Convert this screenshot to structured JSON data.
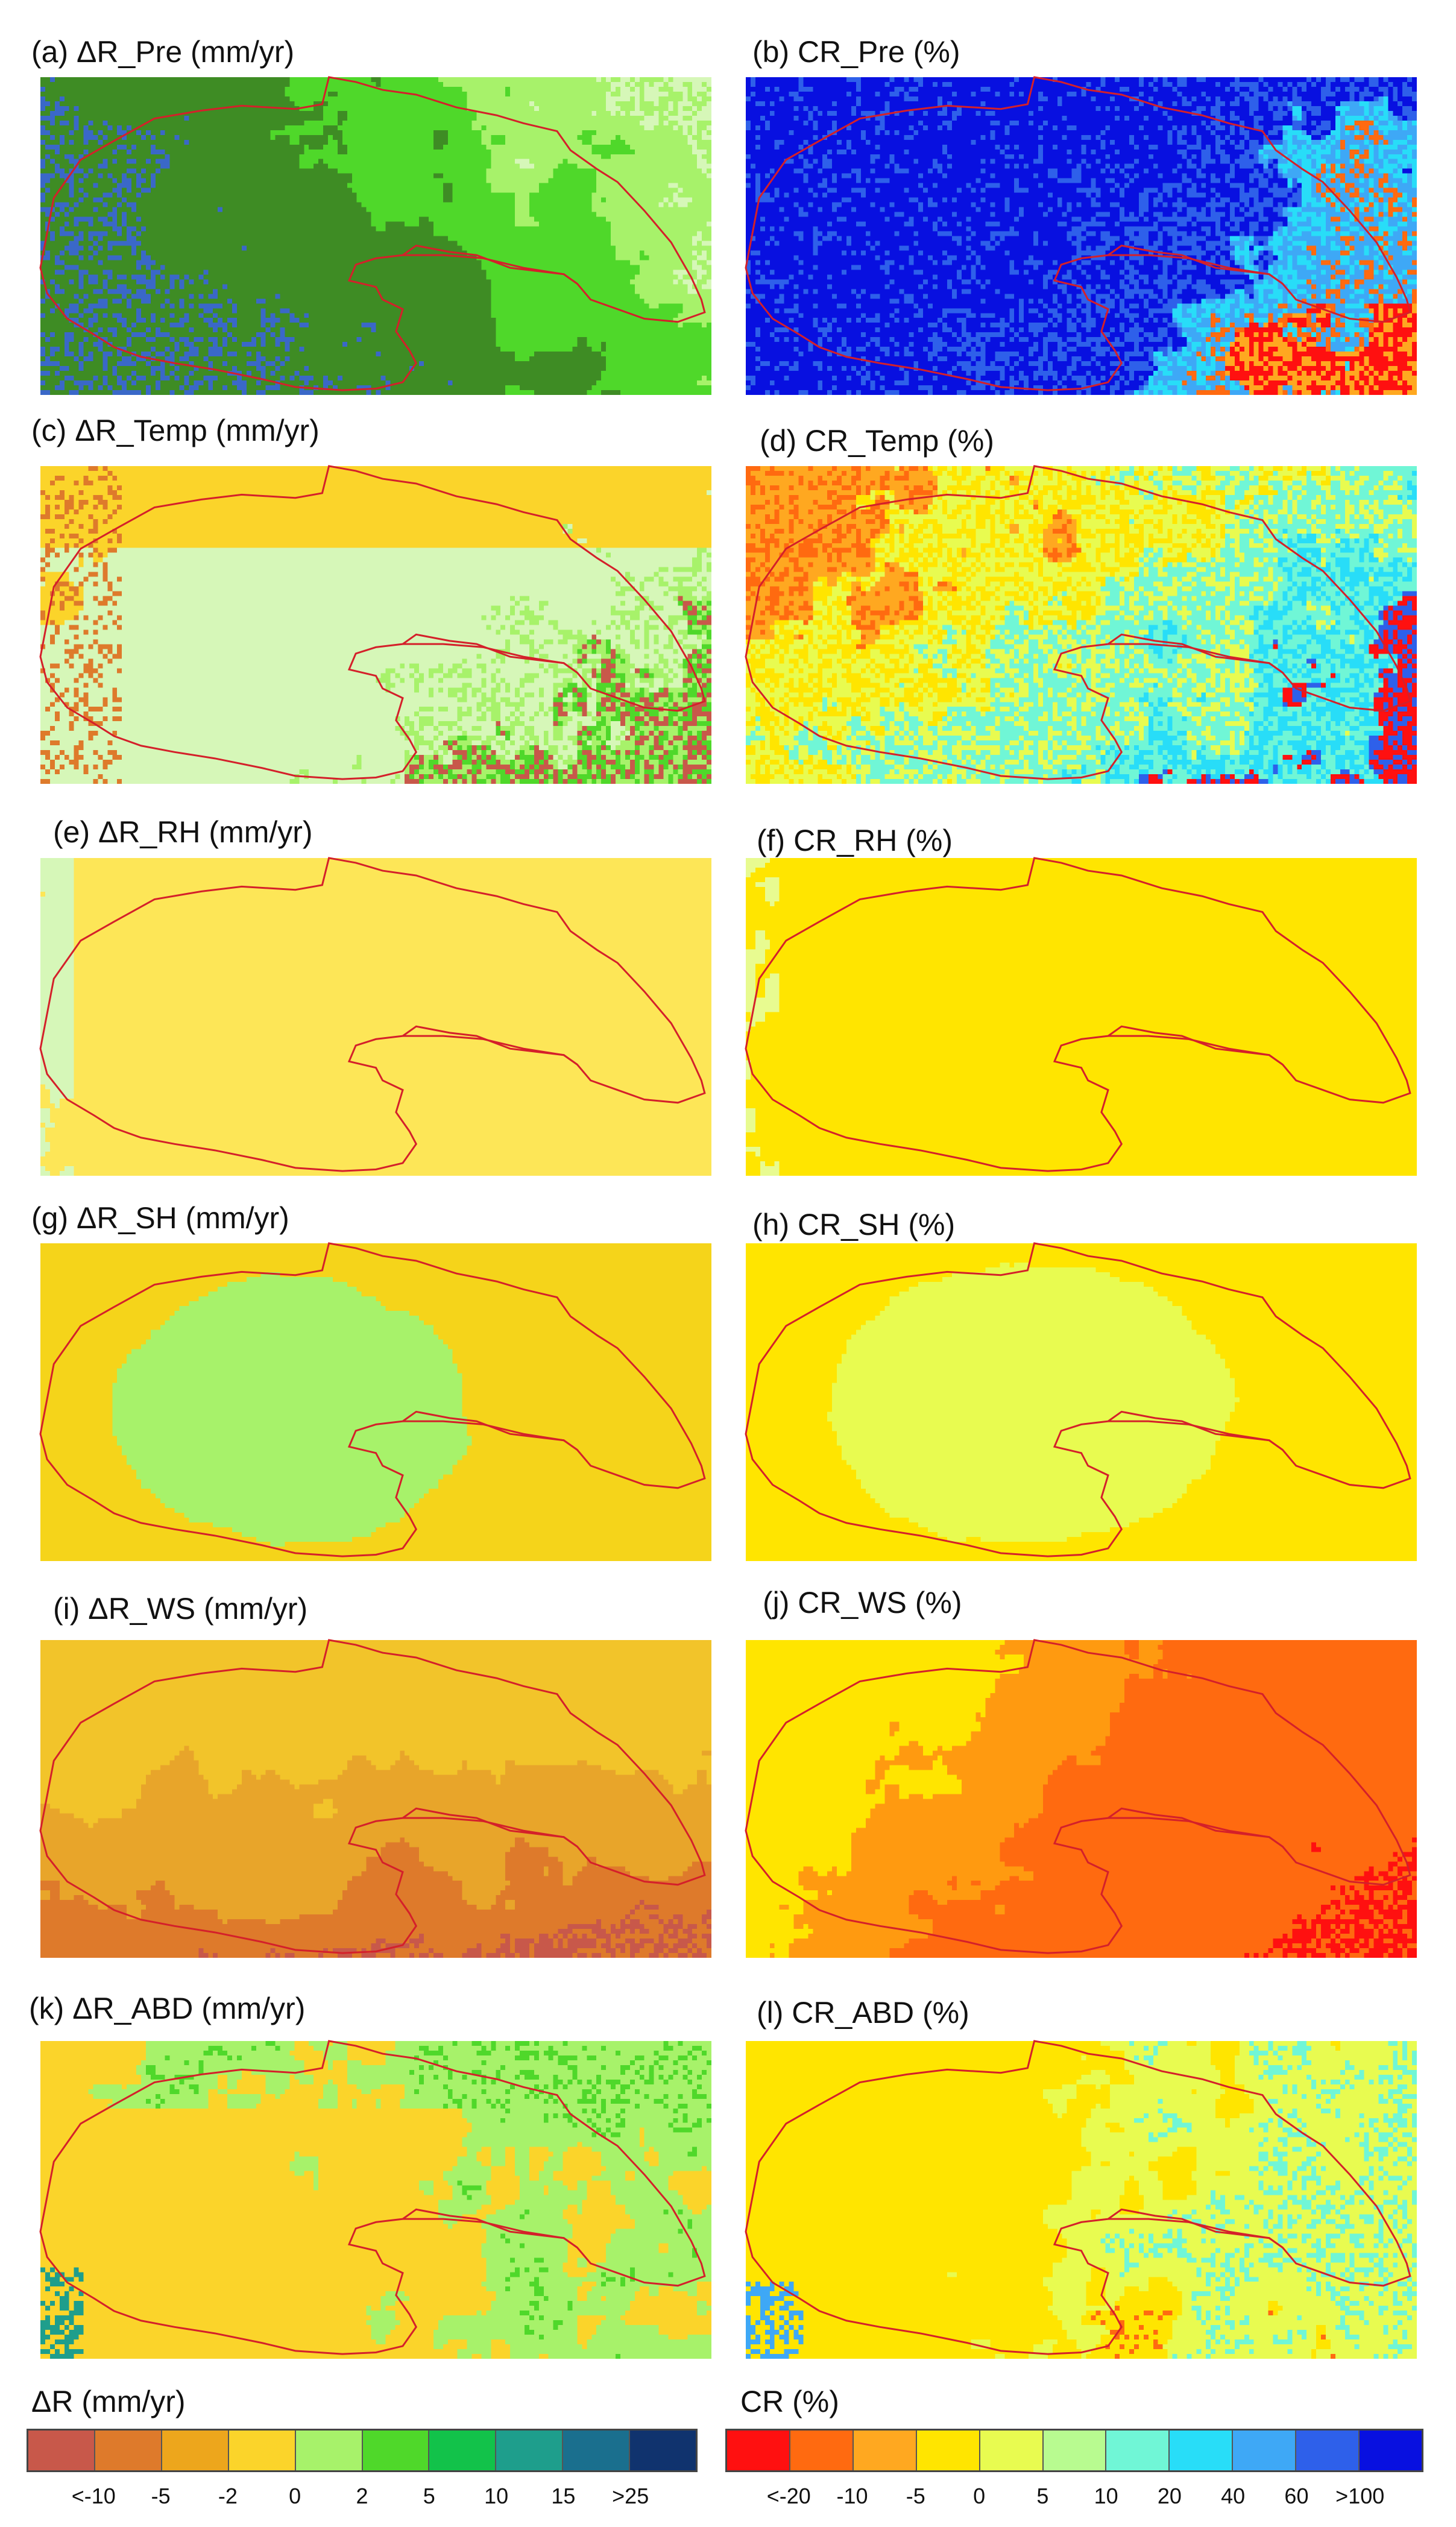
{
  "panels": [
    {
      "id": "a",
      "title": "(a) ΔR_Pre (mm/yr)",
      "kind": "dr_pre"
    },
    {
      "id": "b",
      "title": "(b) CR_Pre (%)",
      "kind": "cr_pre"
    },
    {
      "id": "c",
      "title": "(c) ΔR_Temp (mm/yr)",
      "kind": "dr_temp"
    },
    {
      "id": "d",
      "title": "(d) CR_Temp (%)",
      "kind": "cr_temp"
    },
    {
      "id": "e",
      "title": "(e) ΔR_RH (mm/yr)",
      "kind": "dr_rh"
    },
    {
      "id": "f",
      "title": "(f)  CR_RH (%)",
      "kind": "cr_rh"
    },
    {
      "id": "g",
      "title": "(g) ΔR_SH (mm/yr)",
      "kind": "dr_sh"
    },
    {
      "id": "h",
      "title": "(h) CR_SH (%)",
      "kind": "cr_sh"
    },
    {
      "id": "i",
      "title": "(i) ΔR_WS (mm/yr)",
      "kind": "dr_ws"
    },
    {
      "id": "j",
      "title": "(j)  CR_WS (%)",
      "kind": "cr_ws"
    },
    {
      "id": "k",
      "title": "(k) ΔR_ABD (mm/yr)",
      "kind": "dr_abd"
    },
    {
      "id": "l",
      "title": "(l)  CR_ABD (%)",
      "kind": "cr_abd"
    }
  ],
  "legend_dr": {
    "title": "ΔR (mm/yr)",
    "ticks": [
      "<-10",
      "-5",
      "-2",
      "0",
      "2",
      "5",
      "10",
      "15",
      ">25"
    ],
    "colors": [
      "#c8584a",
      "#de7a2b",
      "#eda61c",
      "#fbd42a",
      "#a7f26a",
      "#4fd82a",
      "#12c24a",
      "#1e9e8c",
      "#1a6f8e",
      "#10336e"
    ]
  },
  "legend_cr": {
    "title": "CR (%)",
    "ticks": [
      "<-20",
      "-10",
      "-5",
      "0",
      "5",
      "10",
      "20",
      "40",
      "60",
      ">100"
    ],
    "colors": [
      "#ff1010",
      "#ff6a10",
      "#ffa820",
      "#ffe500",
      "#e8fb50",
      "#b8fb90",
      "#70f6d6",
      "#28ddf8",
      "#3ea8f6",
      "#2e60ea",
      "#0810e0"
    ]
  },
  "colors": {
    "boundary": "#d4202a"
  }
}
